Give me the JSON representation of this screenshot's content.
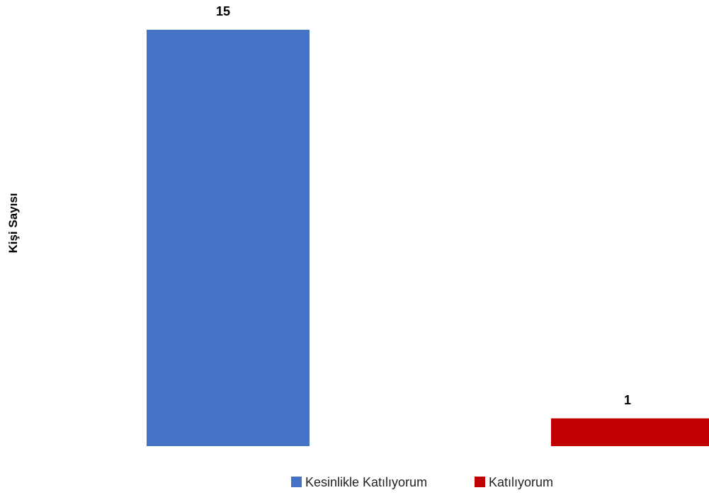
{
  "chart_data": {
    "type": "bar",
    "ylabel": "Kişi Sayısı",
    "ylim": [
      0,
      15
    ],
    "grid": false,
    "legend": "bottom",
    "series": [
      {
        "name": "Kesinlikle Katılıyorum",
        "value": 15,
        "color": "#4472c4"
      },
      {
        "name": "Katılıyorum",
        "value": 1,
        "color": "#c00000"
      }
    ]
  }
}
